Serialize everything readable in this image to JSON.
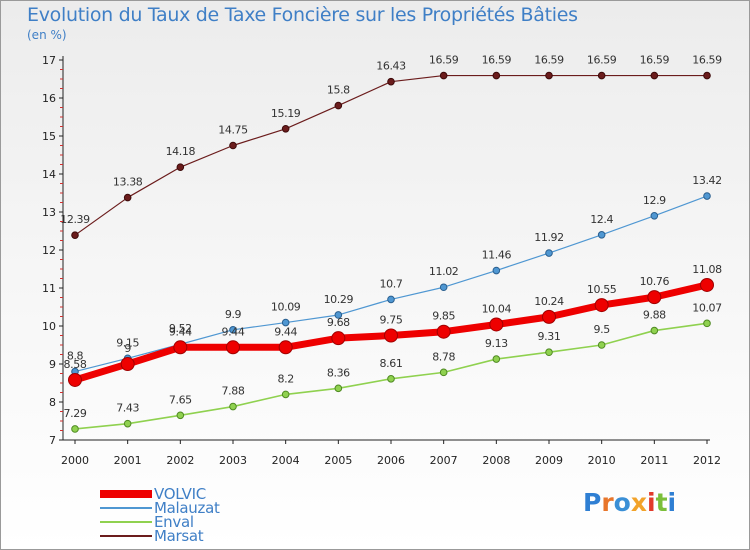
{
  "title": "Evolution du Taux de Taxe Foncière sur les Propriétés Bâties",
  "unit_label": "(en %)",
  "brand": "Proxiti",
  "colors": {
    "title_text": "#3f7fc6",
    "volvic": "#ee0000",
    "malauzat": "#4f97d2",
    "enval": "#8fd14f",
    "marsat": "#6b1c1c"
  },
  "chart_data": {
    "type": "line",
    "title": "Evolution du Taux de Taxe Foncière sur les Propriétés Bâties",
    "ylabel": "(en %)",
    "xlabel": "",
    "x": [
      "2000",
      "2001",
      "2002",
      "2003",
      "2004",
      "2005",
      "2006",
      "2007",
      "2008",
      "2009",
      "2010",
      "2011",
      "2012"
    ],
    "ylim": [
      7,
      17
    ],
    "yticks": [
      "7",
      "8",
      "9",
      "10",
      "11",
      "12",
      "13",
      "14",
      "15",
      "16",
      "17"
    ],
    "grid": false,
    "legend_position": "bottom-left",
    "series": [
      {
        "name": "Marsat",
        "key": "marsat",
        "values": [
          12.39,
          13.38,
          14.18,
          14.75,
          15.19,
          15.8,
          16.43,
          16.59,
          16.59,
          16.59,
          16.59,
          16.59,
          16.59
        ]
      },
      {
        "name": "Malauzat",
        "key": "malauzat",
        "values": [
          8.8,
          9.15,
          9.52,
          9.9,
          10.09,
          10.29,
          10.7,
          11.02,
          11.46,
          11.92,
          12.4,
          12.9,
          13.42
        ]
      },
      {
        "name": "Enval",
        "key": "enval",
        "values": [
          7.29,
          7.43,
          7.65,
          7.88,
          8.2,
          8.36,
          8.61,
          8.78,
          9.13,
          9.31,
          9.5,
          9.88,
          10.07
        ]
      },
      {
        "name": "VOLVIC",
        "key": "volvic",
        "values": [
          8.58,
          9.0,
          9.44,
          9.44,
          9.44,
          9.68,
          9.75,
          9.85,
          10.04,
          10.24,
          10.55,
          10.76,
          11.08
        ]
      }
    ],
    "data_labels": {
      "marsat": [
        "12.39",
        "13.38",
        "14.18",
        "14.75",
        "15.19",
        "15.8",
        "16.43",
        "16.59",
        "16.59",
        "16.59",
        "16.59",
        "16.59",
        "16.59"
      ],
      "malauzat": [
        "8.8",
        "9.15",
        "9.52",
        "9.9",
        "10.09",
        "10.29",
        "10.7",
        "11.02",
        "11.46",
        "11.92",
        "12.4",
        "12.9",
        "13.42"
      ],
      "enval": [
        "7.29",
        "7.43",
        "7.65",
        "7.88",
        "8.2",
        "8.36",
        "8.61",
        "8.78",
        "9.13",
        "9.31",
        "9.5",
        "9.88",
        "10.07"
      ],
      "volvic": [
        "8.58",
        "9",
        "9.44",
        "9.44",
        "9.44",
        "9.68",
        "9.75",
        "9.85",
        "10.04",
        "10.24",
        "10.55",
        "10.76",
        "11.08"
      ]
    }
  },
  "legend": [
    {
      "label": "VOLVIC",
      "key": "volvic"
    },
    {
      "label": "Malauzat",
      "key": "malauzat"
    },
    {
      "label": "Enval",
      "key": "enval"
    },
    {
      "label": "Marsat",
      "key": "marsat"
    }
  ]
}
